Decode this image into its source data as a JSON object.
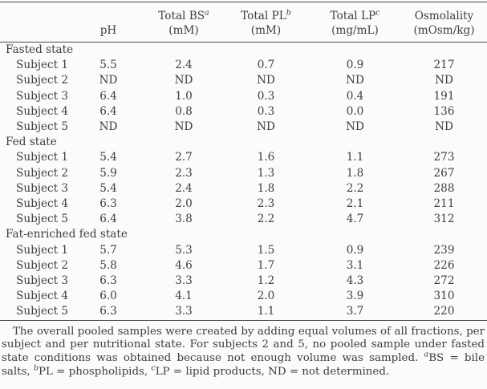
{
  "theme": {
    "background": "#fbfbfa",
    "text_color": "#3e3e42",
    "rule_color": "#474747"
  },
  "table": {
    "columns": [
      {
        "id": "subject",
        "line1": "",
        "sup": "",
        "line2": ""
      },
      {
        "id": "ph",
        "line1": "",
        "sup": "",
        "line2": "pH"
      },
      {
        "id": "total-bs",
        "line1": "Total BS",
        "sup": "a",
        "line2": "(mM)"
      },
      {
        "id": "total-pl",
        "line1": "Total PL",
        "sup": "b",
        "line2": "(mM)"
      },
      {
        "id": "total-lp",
        "line1": "Total LP",
        "sup": "c",
        "line2": "(mg/mL)"
      },
      {
        "id": "osmolality",
        "line1": "Osmolality",
        "sup": "",
        "line2": "(mOsm/kg)"
      }
    ],
    "sections": [
      {
        "label": "Fasted state",
        "rows": [
          {
            "label": "Subject 1",
            "values": [
              "5.5",
              "2.4",
              "0.7",
              "0.9",
              "217"
            ]
          },
          {
            "label": "Subject 2",
            "values": [
              "ND",
              "ND",
              "ND",
              "ND",
              "ND"
            ]
          },
          {
            "label": "Subject 3",
            "values": [
              "6.4",
              "1.0",
              "0.3",
              "0.4",
              "191"
            ]
          },
          {
            "label": "Subject 4",
            "values": [
              "6.4",
              "0.8",
              "0.3",
              "0.0",
              "136"
            ]
          },
          {
            "label": "Subject 5",
            "values": [
              "ND",
              "ND",
              "ND",
              "ND",
              "ND"
            ]
          }
        ]
      },
      {
        "label": "Fed state",
        "rows": [
          {
            "label": "Subject 1",
            "values": [
              "5.4",
              "2.7",
              "1.6",
              "1.1",
              "273"
            ]
          },
          {
            "label": "Subject 2",
            "values": [
              "5.9",
              "2.3",
              "1.3",
              "1.8",
              "267"
            ]
          },
          {
            "label": "Subject 3",
            "values": [
              "5.4",
              "2.4",
              "1.8",
              "2.2",
              "288"
            ]
          },
          {
            "label": "Subject 4",
            "values": [
              "6.3",
              "2.0",
              "2.3",
              "2.1",
              "211"
            ]
          },
          {
            "label": "Subject 5",
            "values": [
              "6.4",
              "3.8",
              "2.2",
              "4.7",
              "312"
            ]
          }
        ]
      },
      {
        "label": "Fat-enriched fed state",
        "rows": [
          {
            "label": "Subject 1",
            "values": [
              "5.7",
              "5.3",
              "1.5",
              "0.9",
              "239"
            ]
          },
          {
            "label": "Subject 2",
            "values": [
              "5.8",
              "4.6",
              "1.7",
              "3.1",
              "226"
            ]
          },
          {
            "label": "Subject 3",
            "values": [
              "6.3",
              "3.3",
              "1.2",
              "4.3",
              "272"
            ]
          },
          {
            "label": "Subject 4",
            "values": [
              "6.0",
              "4.1",
              "2.0",
              "3.9",
              "310"
            ]
          },
          {
            "label": "Subject 5",
            "values": [
              "6.3",
              "3.3",
              "1.1",
              "3.7",
              "220"
            ]
          }
        ]
      }
    ]
  },
  "footnote": {
    "segments": [
      {
        "text": "The overall pooled samples were created by adding equal volumes of all fractions, per subject and per nutritional state. For subjects 2 and 5, no pooled sample under fasted state conditions was obtained because not enough volume was sampled. "
      },
      {
        "sup": "a"
      },
      {
        "text": "BS = bile salts, "
      },
      {
        "sup": "b"
      },
      {
        "text": "PL = phospholipids, "
      },
      {
        "sup": "c"
      },
      {
        "text": "LP = lipid products, ND = not determined."
      }
    ]
  }
}
